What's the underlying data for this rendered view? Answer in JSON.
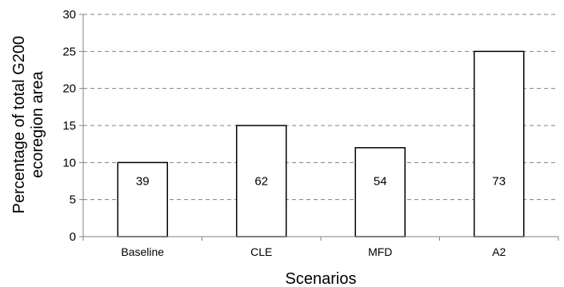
{
  "chart_data": {
    "type": "bar",
    "categories": [
      "Baseline",
      "CLE",
      "MFD",
      "A2"
    ],
    "values": [
      10,
      15,
      12,
      25
    ],
    "bar_labels": [
      "39",
      "62",
      "54",
      "73"
    ],
    "xlabel": "Scenarios",
    "ylabel_lines": [
      "Percentage of total G200",
      "ecoregion area"
    ],
    "ylim": [
      0,
      30
    ],
    "yticks": [
      "0",
      "5",
      "10",
      "15",
      "20",
      "25",
      "30"
    ],
    "grid": "horizontal dashed",
    "colors": {
      "bar_fill": "#ffffff",
      "bar_stroke": "#000000",
      "grid": "#808080",
      "axis": "#808080"
    }
  }
}
